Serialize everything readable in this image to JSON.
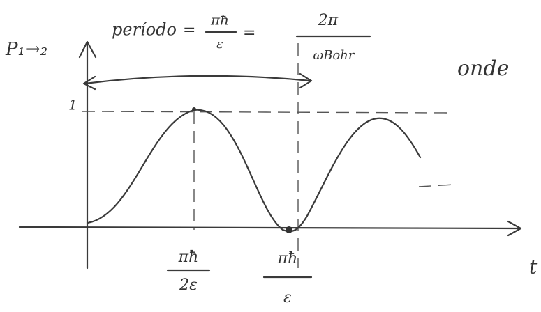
{
  "axis_labels": {
    "y": "P₁→₂",
    "x": "t"
  },
  "period_label": {
    "text": "período",
    "equals": "=",
    "fraction1": {
      "num": "πħ",
      "den": "ε"
    },
    "fraction2": {
      "num": "2π",
      "den": "ωBohr"
    }
  },
  "note": "onde",
  "y_tick": "1",
  "x_ticks": [
    {
      "num": "πħ",
      "den": "2ε"
    },
    {
      "num": "πħ",
      "den": "ε"
    }
  ]
}
